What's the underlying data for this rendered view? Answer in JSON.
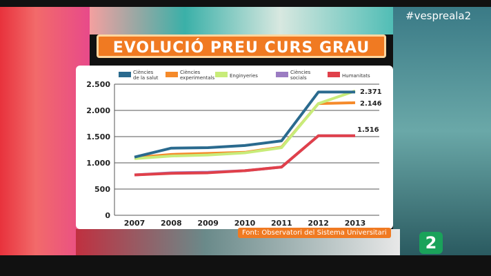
{
  "hashtag": "#vespreala2",
  "title": "EVOLUCIÓ PREU CURS GRAU",
  "source": "Font: Observatori del Sistema Universitari",
  "channel_logo": "2",
  "chart_data": {
    "type": "line",
    "title": "",
    "xlabel": "",
    "ylabel": "",
    "categories": [
      "2007",
      "2008",
      "2009",
      "2010",
      "2011",
      "2012",
      "2013"
    ],
    "ylim": [
      0,
      2500
    ],
    "yticks": [
      0,
      500,
      1000,
      1500,
      2000,
      2500
    ],
    "ytick_labels": [
      "0",
      "500",
      "1.000",
      "1.500",
      "2.000",
      "2.500"
    ],
    "grid": true,
    "legend_placement": "top",
    "series": [
      {
        "name": "Ciències de la salut",
        "color": "#2a6a8e",
        "values": [
          1110,
          1280,
          1290,
          1330,
          1420,
          2350,
          2350
        ]
      },
      {
        "name": "Ciències experimentals",
        "color": "#f58a2a",
        "values": [
          1100,
          1160,
          1180,
          1200,
          1300,
          2130,
          2146
        ]
      },
      {
        "name": "Enginyeries",
        "color": "#c8ec7a",
        "values": [
          1080,
          1130,
          1150,
          1190,
          1290,
          2130,
          2371
        ]
      },
      {
        "name": "Ciències socials",
        "color": "#9b7cc2",
        "values": [
          770,
          810,
          820,
          850,
          920,
          1516,
          1516
        ]
      },
      {
        "name": "Humanitats",
        "color": "#e0404a",
        "values": [
          770,
          800,
          810,
          850,
          920,
          1516,
          1516
        ]
      }
    ],
    "annotations": [
      "2.371",
      "2.146",
      "1.516"
    ]
  }
}
